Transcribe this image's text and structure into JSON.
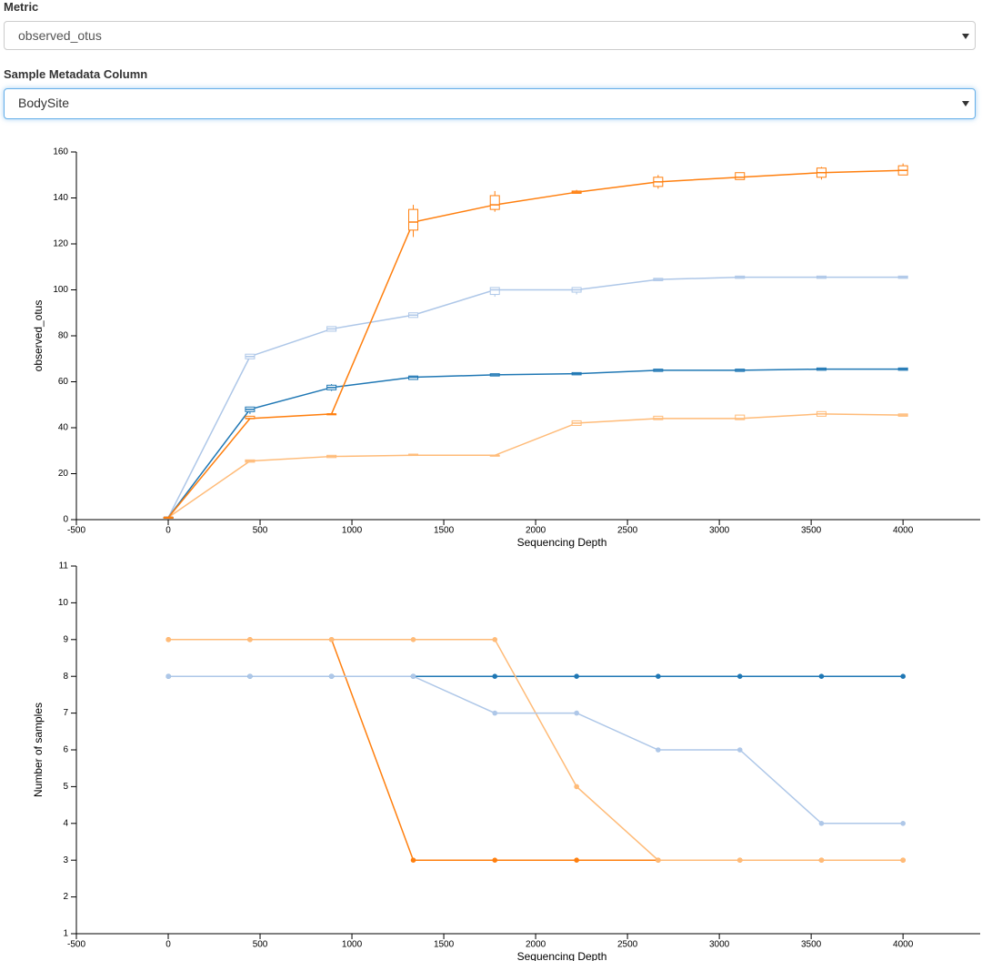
{
  "controls": {
    "metric": {
      "label": "Metric",
      "value": "observed_otus"
    },
    "column": {
      "label": "Sample Metadata Column",
      "value": "BodySite"
    }
  },
  "chart_data": [
    {
      "type": "boxline",
      "xlabel": "Sequencing Depth",
      "ylabel": "observed_otus",
      "x": [
        1,
        445,
        889,
        1334,
        1778,
        2223,
        2667,
        3112,
        3556,
        4000
      ],
      "xlim": [
        -500,
        4420
      ],
      "xticks": [
        -500,
        0,
        500,
        1000,
        1500,
        2000,
        2500,
        3000,
        3500,
        4000
      ],
      "ylim": [
        0,
        160
      ],
      "yticks": [
        0,
        20,
        40,
        60,
        80,
        100,
        120,
        140,
        160
      ],
      "series": [
        {
          "color": "#aec7e8",
          "values": [
            1,
            71,
            83,
            89,
            100,
            100,
            104.5,
            105.5,
            105.5,
            105.5
          ],
          "q1": [
            1,
            70,
            82,
            88,
            98,
            99,
            104,
            105,
            105,
            105
          ],
          "q3": [
            1,
            72,
            84,
            90,
            101,
            101,
            105,
            106,
            106,
            106
          ],
          "low": [
            1,
            70,
            82,
            88,
            97,
            98,
            104,
            105,
            105,
            105
          ],
          "high": [
            1,
            72,
            84,
            90,
            101,
            101,
            105,
            106,
            106,
            106
          ]
        },
        {
          "color": "#ffbb78",
          "values": [
            1,
            25.5,
            27.5,
            28,
            28,
            42,
            44,
            44,
            46,
            45.5
          ],
          "q1": [
            1,
            25,
            27,
            28,
            28,
            41,
            43.5,
            43.5,
            45,
            45
          ],
          "q3": [
            1,
            26,
            28,
            28.5,
            28,
            43,
            45,
            45.5,
            47,
            46
          ],
          "low": [
            1,
            25,
            27,
            28,
            28,
            41,
            43.5,
            43.5,
            45,
            45
          ],
          "high": [
            1,
            26,
            28,
            28.5,
            28,
            43,
            45,
            45.5,
            47,
            46
          ]
        },
        {
          "color": "#1f77b4",
          "values": [
            1,
            48,
            57.5,
            62,
            63,
            63.5,
            65,
            65,
            65.5,
            65.5
          ],
          "q1": [
            1,
            47,
            56.5,
            61,
            62.5,
            63,
            64.5,
            64.5,
            65,
            65
          ],
          "q3": [
            1,
            49,
            58.5,
            62.5,
            63.5,
            64,
            65.5,
            65.5,
            66,
            66
          ],
          "low": [
            1,
            46,
            56,
            61,
            62.5,
            63,
            64.5,
            64.5,
            65,
            65
          ],
          "high": [
            1,
            49,
            59,
            62.5,
            63.5,
            64,
            65.5,
            65.5,
            66,
            66
          ]
        },
        {
          "color": "#ff7f0e",
          "values": [
            1,
            44,
            46,
            129.5,
            137,
            142.5,
            147,
            149,
            151,
            152
          ],
          "q1": [
            1,
            44,
            46,
            126,
            135,
            142,
            145,
            148,
            149,
            150
          ],
          "q3": [
            1,
            45,
            46,
            135,
            141,
            143,
            149,
            151,
            153,
            154
          ],
          "low": [
            1,
            44,
            46,
            123,
            134,
            142,
            144,
            148,
            148,
            150
          ],
          "high": [
            1,
            45,
            46,
            137,
            143,
            143.5,
            150,
            151,
            153.5,
            155
          ]
        }
      ]
    },
    {
      "type": "line",
      "xlabel": "Sequencing Depth",
      "ylabel": "Number of samples",
      "x": [
        1,
        445,
        889,
        1334,
        1778,
        2223,
        2667,
        3112,
        3556,
        4000
      ],
      "xlim": [
        -500,
        4420
      ],
      "xticks": [
        -500,
        0,
        500,
        1000,
        1500,
        2000,
        2500,
        3000,
        3500,
        4000
      ],
      "ylim": [
        1,
        11
      ],
      "yticks": [
        1,
        2,
        3,
        4,
        5,
        6,
        7,
        8,
        9,
        10,
        11
      ],
      "series": [
        {
          "color": "#1f77b4",
          "values": [
            8,
            8,
            8,
            8,
            8,
            8,
            8,
            8,
            8,
            8
          ]
        },
        {
          "color": "#ff7f0e",
          "values": [
            9,
            9,
            9,
            3,
            3,
            3,
            3,
            3,
            3,
            3
          ]
        },
        {
          "color": "#ffbb78",
          "values": [
            9,
            9,
            9,
            9,
            9,
            5,
            3,
            3,
            3,
            3
          ]
        },
        {
          "color": "#aec7e8",
          "values": [
            8,
            8,
            8,
            8,
            7,
            7,
            6,
            6,
            4,
            4
          ]
        }
      ]
    }
  ]
}
